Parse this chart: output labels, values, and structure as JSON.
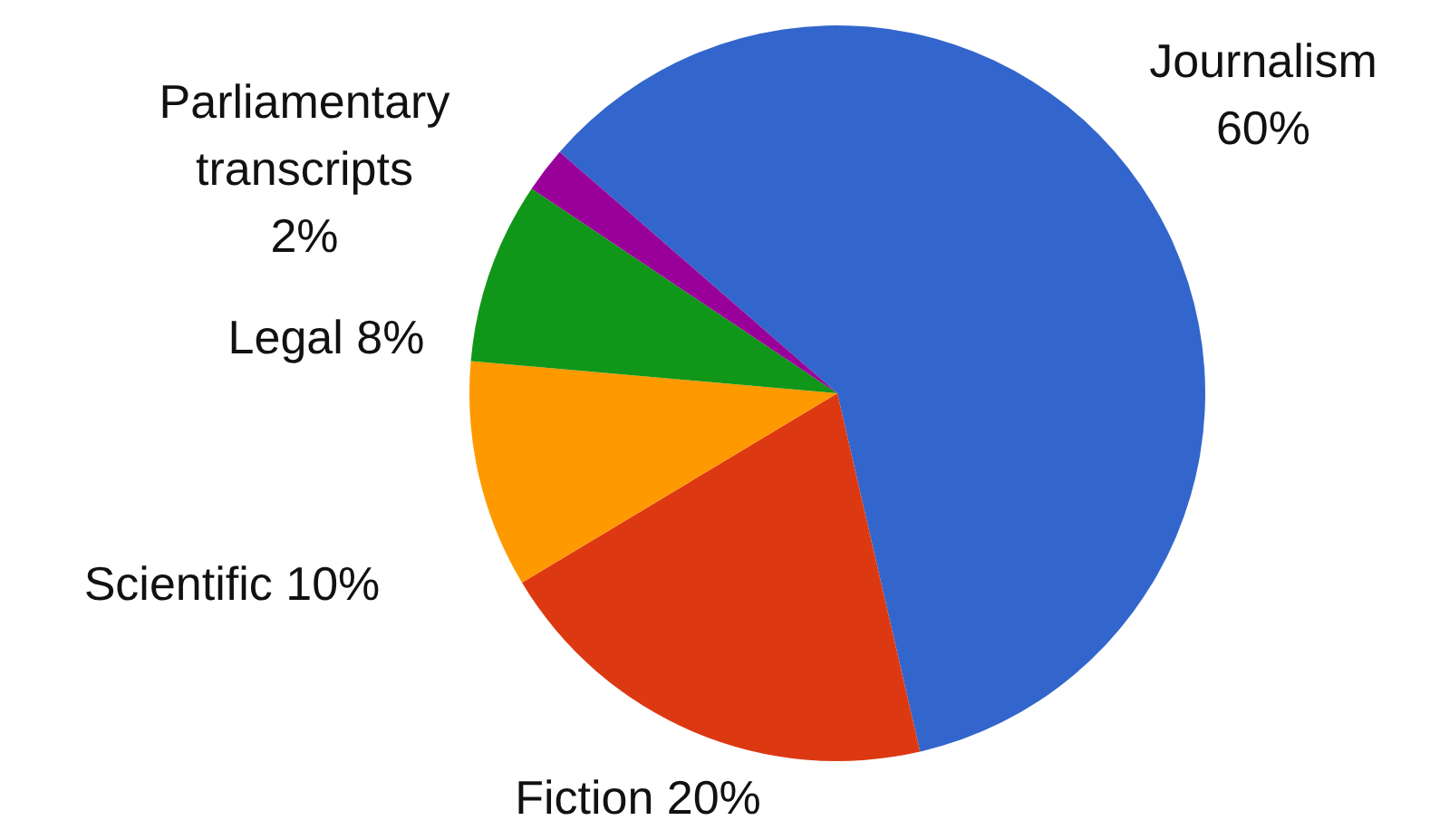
{
  "chart_data": {
    "type": "pie",
    "categories": [
      "Journalism",
      "Fiction",
      "Scientific",
      "Legal",
      "Parliamentary transcripts"
    ],
    "values": [
      60,
      20,
      10,
      8,
      2
    ],
    "value_labels": [
      "60%",
      "20%",
      "10%",
      "8%",
      "2%"
    ],
    "colors": [
      "#3366cc",
      "#dc3912",
      "#ff9900",
      "#109618",
      "#990099"
    ],
    "legend": false
  }
}
